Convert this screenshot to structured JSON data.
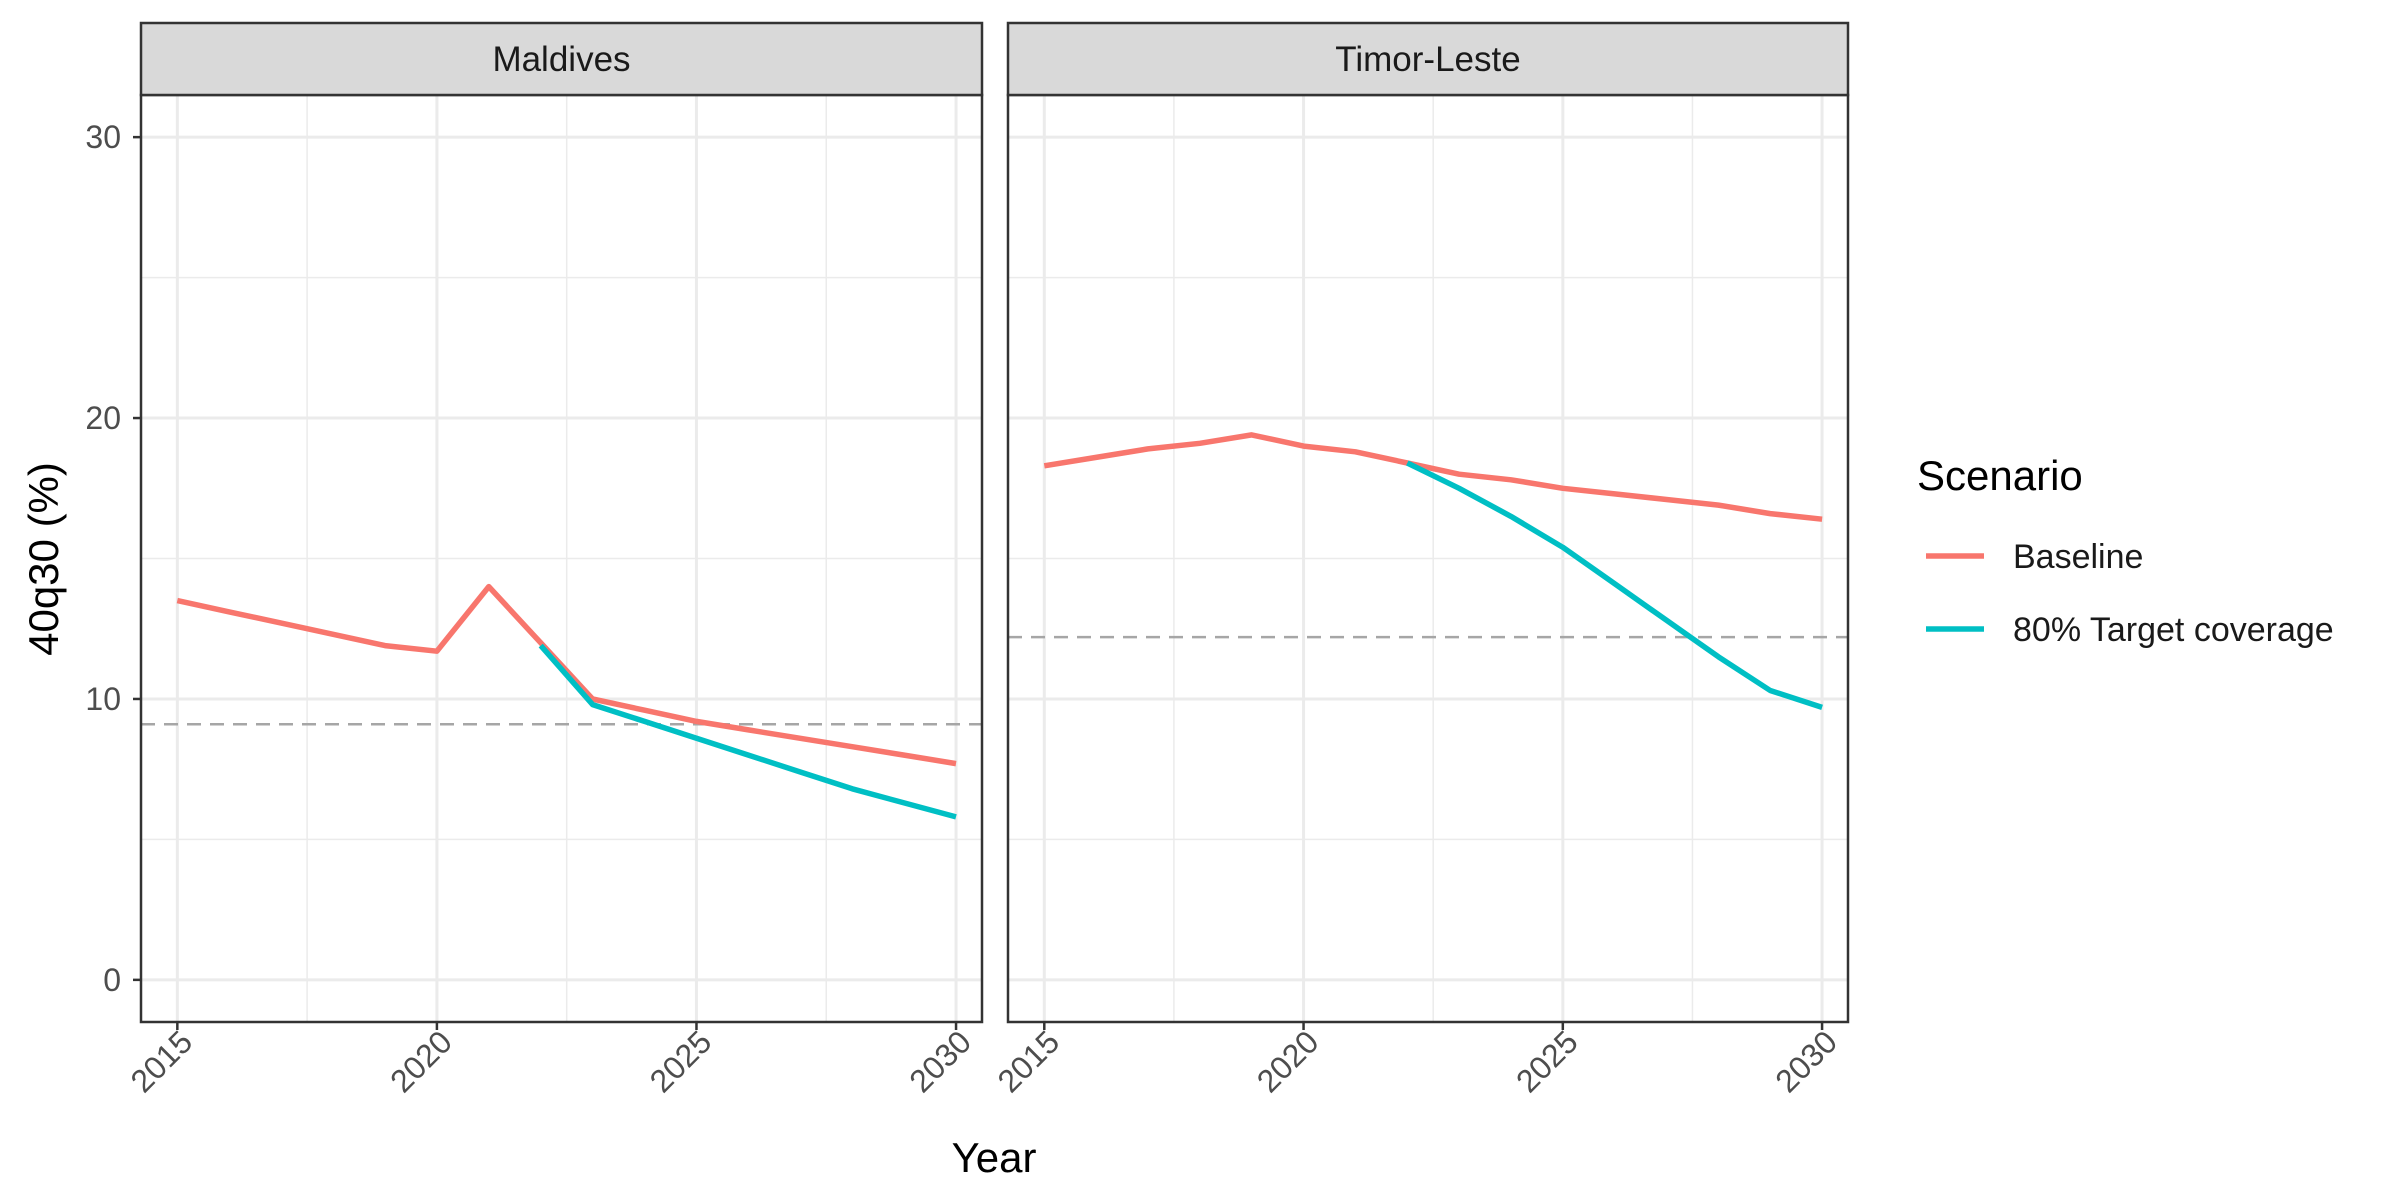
{
  "chart_data": {
    "type": "line",
    "xlabel": "Year",
    "ylabel": "40q30 (%)",
    "xlim": [
      2014.3,
      2030.5
    ],
    "ylim": [
      -1.5,
      31.5
    ],
    "x_ticks": [
      "2015",
      "2020",
      "2025",
      "2030"
    ],
    "y_ticks": [
      "0",
      "10",
      "20",
      "30"
    ],
    "grid": true,
    "legend": {
      "title": "Scenario",
      "position": "right",
      "entries": [
        {
          "label": "Baseline",
          "color": "#F8766D"
        },
        {
          "label": "80% Target coverage",
          "color": "#00BFC4"
        }
      ]
    },
    "panels": [
      {
        "name": "Maldives",
        "target": 9.1,
        "series": [
          {
            "name": "Baseline",
            "color": "#F8766D",
            "x": [
              2015,
              2016,
              2017,
              2018,
              2019,
              2020,
              2021,
              2022,
              2023,
              2024,
              2025,
              2026,
              2027,
              2028,
              2029,
              2030
            ],
            "y": [
              13.5,
              13.1,
              12.7,
              12.3,
              11.9,
              11.7,
              14.0,
              12.0,
              10.0,
              9.6,
              9.2,
              8.9,
              8.6,
              8.3,
              8.0,
              7.7
            ]
          },
          {
            "name": "80% Target coverage",
            "color": "#00BFC4",
            "x": [
              2022,
              2023,
              2024,
              2025,
              2026,
              2027,
              2028,
              2029,
              2030
            ],
            "y": [
              11.9,
              9.8,
              9.2,
              8.6,
              8.0,
              7.4,
              6.8,
              6.3,
              5.8
            ]
          }
        ]
      },
      {
        "name": "Timor-Leste",
        "target": 12.2,
        "series": [
          {
            "name": "Baseline",
            "color": "#F8766D",
            "x": [
              2015,
              2016,
              2017,
              2018,
              2019,
              2020,
              2021,
              2022,
              2023,
              2024,
              2025,
              2026,
              2027,
              2028,
              2029,
              2030
            ],
            "y": [
              18.3,
              18.6,
              18.9,
              19.1,
              19.4,
              19.0,
              18.8,
              18.4,
              18.0,
              17.8,
              17.5,
              17.3,
              17.1,
              16.9,
              16.6,
              16.4
            ]
          },
          {
            "name": "80% Target coverage",
            "color": "#00BFC4",
            "x": [
              2022,
              2023,
              2024,
              2025,
              2026,
              2027,
              2028,
              2029,
              2030
            ],
            "y": [
              18.4,
              17.5,
              16.5,
              15.4,
              14.1,
              12.8,
              11.5,
              10.3,
              9.7
            ]
          }
        ]
      }
    ]
  }
}
